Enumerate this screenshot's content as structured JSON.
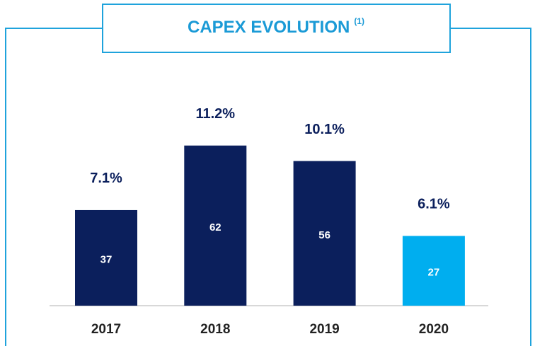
{
  "chart_data": {
    "type": "bar",
    "title": "CAPEX EVOLUTION",
    "title_note": "(1)",
    "categories": [
      "2017",
      "2018",
      "2019",
      "2020"
    ],
    "values": [
      37,
      62,
      56,
      27
    ],
    "annotations": [
      "7.1%",
      "11.2%",
      "10.1%",
      "6.1%"
    ],
    "colors": [
      "#0b1f5c",
      "#0b1f5c",
      "#0b1f5c",
      "#00aeef"
    ]
  }
}
